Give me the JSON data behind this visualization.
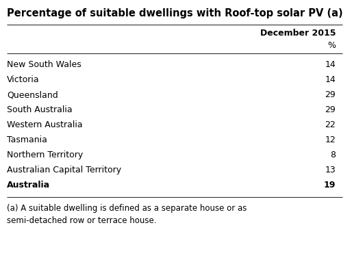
{
  "title": "Percentage of suitable dwellings with Roof-top solar PV (a)",
  "col_header": "December 2015",
  "col_subheader": "%",
  "rows": [
    {
      "label": "New South Wales",
      "value": "14",
      "bold": false
    },
    {
      "label": "Victoria",
      "value": "14",
      "bold": false
    },
    {
      "label": "Queensland",
      "value": "29",
      "bold": false
    },
    {
      "label": "South Australia",
      "value": "29",
      "bold": false
    },
    {
      "label": "Western Australia",
      "value": "22",
      "bold": false
    },
    {
      "label": "Tasmania",
      "value": "12",
      "bold": false
    },
    {
      "label": "Northern Territory",
      "value": "8",
      "bold": false
    },
    {
      "label": "Australian Capital Territory",
      "value": "13",
      "bold": false
    },
    {
      "label": "Australia",
      "value": "19",
      "bold": true
    }
  ],
  "footnote_line1": "(a) A suitable dwelling is defined as a separate house or as",
  "footnote_line2": "semi-detached row or terrace house.",
  "bg_color": "#ffffff",
  "text_color": "#000000",
  "title_fontsize": 10.5,
  "header_fontsize": 9.0,
  "row_fontsize": 9.0,
  "footnote_fontsize": 8.5,
  "line_color": "#333333"
}
